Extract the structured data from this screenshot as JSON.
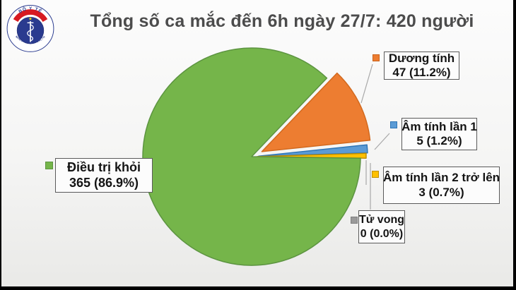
{
  "title": {
    "text": "Tổng số ca mắc đến 6h ngày 27/7: 420 người"
  },
  "logo": {
    "top_text": "BỘ Y TẾ",
    "bottom_text": "MINISTRY OF HEALTH",
    "star": "★",
    "colors": {
      "ring_blue": "#2A3B8F",
      "band_red": "#D71A21",
      "star_yellow": "#FFDE00"
    }
  },
  "chart_data": {
    "type": "pie",
    "title": "Tổng số ca mắc đến 6h ngày 27/7: 420 người",
    "total": 420,
    "unit": "người",
    "start_angle_deg": 46.3,
    "direction": "clockwise",
    "center": [
      356,
      222
    ],
    "radius": 154,
    "legend_position": "callouts",
    "slices": [
      {
        "id": "duong-tinh",
        "label": "Dương tính",
        "value": 47,
        "pct": 11.2,
        "display": "47 (11.2%)",
        "color": "#ED7D31",
        "border": "#D2691E",
        "explode": 16
      },
      {
        "id": "am-tinh-lan-1",
        "label": "Âm tính lần 1",
        "value": 5,
        "pct": 1.2,
        "display": "5 (1.2%)",
        "color": "#5B9BD5",
        "border": "#2E75B6",
        "explode": 10
      },
      {
        "id": "am-tinh-lan-2",
        "label": "Âm tính lần 2 trở lên",
        "value": 3,
        "pct": 0.7,
        "display": "3 (0.7%)",
        "color": "#FFC000",
        "border": "#BF9000",
        "explode": 8
      },
      {
        "id": "tu-vong",
        "label": "Tử vong",
        "value": 0,
        "pct": 0.0,
        "display": "0 (0.0%)",
        "color": "#9A9A9A",
        "border": "#7E7E7E",
        "explode": 0
      },
      {
        "id": "dieu-tri-khoi",
        "label": "Điều trị khỏi",
        "value": 365,
        "pct": 86.9,
        "display": "365 (86.9%)",
        "color": "#75B54A",
        "border": "#5C9440",
        "explode": 0
      }
    ],
    "leader_color": "#A8A8A8",
    "leader_lines": [
      [
        [
          527,
          91
        ],
        [
          511,
          146
        ]
      ],
      [
        [
          530,
          212
        ],
        [
          551,
          189
        ]
      ],
      [
        [
          518,
          227
        ],
        [
          518,
          262
        ]
      ],
      [
        [
          524,
          231
        ],
        [
          524,
          297
        ]
      ],
      [
        [
          214,
          251
        ],
        [
          221,
          286
        ]
      ]
    ]
  }
}
